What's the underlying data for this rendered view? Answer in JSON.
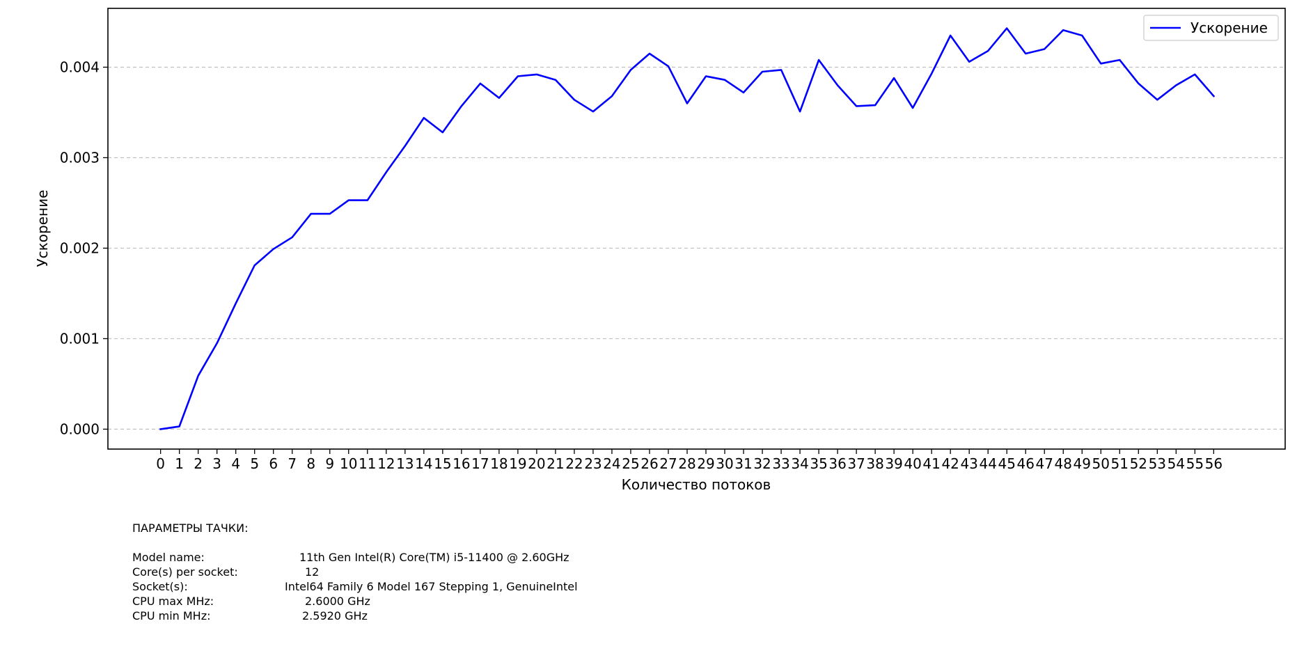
{
  "chart_data": {
    "type": "line",
    "title": "",
    "xlabel": "Количество потоков",
    "ylabel": "Ускорение",
    "x": [
      0,
      1,
      2,
      3,
      4,
      5,
      6,
      7,
      8,
      9,
      10,
      11,
      12,
      13,
      14,
      15,
      16,
      17,
      18,
      19,
      20,
      21,
      22,
      23,
      24,
      25,
      26,
      27,
      28,
      29,
      30,
      31,
      32,
      33,
      34,
      35,
      36,
      37,
      38,
      39,
      40,
      41,
      42,
      43,
      44,
      45,
      46,
      47,
      48,
      49,
      50,
      51,
      52,
      53,
      54,
      55,
      56
    ],
    "xlim": [
      -2.8,
      59.8
    ],
    "ylim": [
      -0.00022,
      0.00465
    ],
    "yticks": [
      0.0,
      0.001,
      0.002,
      0.003,
      0.004
    ],
    "ytick_labels": [
      "0.000",
      "0.001",
      "0.002",
      "0.003",
      "0.004"
    ],
    "grid": "y-dashed",
    "legend_position": "top-right",
    "series": [
      {
        "name": "Ускорение",
        "color": "#0000ff",
        "values": [
          0.0,
          3e-05,
          0.00059,
          0.00095,
          0.00139,
          0.00181,
          0.00199,
          0.00212,
          0.00238,
          0.00238,
          0.00253,
          0.00253,
          0.00284,
          0.00313,
          0.00344,
          0.00328,
          0.00357,
          0.00382,
          0.00366,
          0.0039,
          0.00392,
          0.00386,
          0.00364,
          0.00351,
          0.00368,
          0.00397,
          0.00415,
          0.00401,
          0.0036,
          0.0039,
          0.00386,
          0.00372,
          0.00395,
          0.00397,
          0.00351,
          0.00408,
          0.0038,
          0.00357,
          0.00358,
          0.00388,
          0.00355,
          0.00393,
          0.00435,
          0.00406,
          0.00418,
          0.00443,
          0.00415,
          0.0042,
          0.00441,
          0.00435,
          0.00404,
          0.00408,
          0.00382,
          0.00364,
          0.0038,
          0.00392,
          0.00368
        ]
      }
    ]
  },
  "specs": {
    "heading": "ПАРАМЕТРЫ ТАЧКИ:",
    "rows": [
      {
        "label": "Model name:",
        "value": "11th Gen Intel(R) Core(TM) i5-11400 @ 2.60GHz"
      },
      {
        "label": "Core(s) per socket:",
        "value": "12"
      },
      {
        "label": "Socket(s):",
        "value": "Intel64 Family 6 Model 167 Stepping 1, GenuineIntel"
      },
      {
        "label": "CPU max MHz:",
        "value": "2.6000 GHz"
      },
      {
        "label": "CPU min MHz:",
        "value": "2.5920 GHz"
      }
    ]
  }
}
